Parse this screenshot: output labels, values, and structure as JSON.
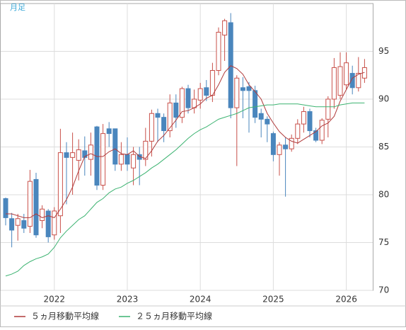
{
  "chart_data": {
    "type": "candlestick",
    "title": "月足",
    "categories": [
      null,
      null,
      null,
      null,
      null,
      null,
      null,
      null,
      "2022",
      null,
      null,
      null,
      null,
      null,
      null,
      null,
      null,
      null,
      null,
      null,
      "2023",
      null,
      null,
      null,
      null,
      null,
      null,
      null,
      null,
      null,
      null,
      null,
      "2024",
      null,
      null,
      null,
      null,
      null,
      null,
      null,
      null,
      null,
      null,
      null,
      "2025",
      null,
      null,
      null,
      null,
      null,
      null,
      null,
      null,
      null,
      null,
      null,
      "2026",
      null,
      null,
      null
    ],
    "open": [
      79.6,
      77.5,
      76.8,
      77.3,
      76.7,
      81.6,
      77.3,
      78.3,
      75.8,
      77.8,
      84.4,
      83.9,
      83.6,
      84.6,
      83.7,
      87.1,
      81,
      86.9,
      86.9,
      83.2,
      84.2,
      82.8,
      84.2,
      83.7,
      85.6,
      88.5,
      88.1,
      86.7,
      89.6,
      88.1,
      91.1,
      89.1,
      89.9,
      91.2,
      90.4,
      93,
      96.7,
      98,
      89.1,
      91.2,
      91.3,
      90.9,
      88.5,
      87.9,
      86.4,
      84.2,
      85.2,
      84.8,
      85.9,
      87.4,
      88.7,
      86.7,
      85.7,
      87.9,
      90,
      90.4,
      91.5,
      92.7,
      91.2,
      92.2
    ],
    "high": [
      79.7,
      78.1,
      78,
      78,
      82.6,
      82.3,
      78.9,
      78.5,
      78.7,
      86.9,
      85.5,
      86.5,
      85.8,
      86.1,
      86.5,
      87.2,
      87.4,
      87.6,
      86.9,
      85.5,
      86,
      85,
      85,
      87,
      88.9,
      89,
      88.5,
      90.5,
      90.5,
      91.3,
      91.5,
      91,
      91.7,
      92,
      93.8,
      97.5,
      98.4,
      99,
      92.5,
      92.3,
      91.8,
      91.4,
      89,
      88.2,
      86.6,
      85.5,
      86,
      86.3,
      87.9,
      89.2,
      89,
      87,
      88,
      90.3,
      94.3,
      94.9,
      94.9,
      93.5,
      94.4,
      94.2
    ],
    "low": [
      76.8,
      74.5,
      75.2,
      76,
      76,
      75.5,
      76.5,
      75,
      75.3,
      76,
      79,
      80,
      81.5,
      82,
      82,
      80.5,
      80.5,
      85,
      82.5,
      82.5,
      82.5,
      81,
      81,
      83,
      84,
      85.5,
      85.5,
      86,
      87,
      87.5,
      88.5,
      88.5,
      89,
      89.8,
      89.7,
      92.5,
      94,
      88,
      83,
      88,
      86.5,
      87.5,
      86,
      85.5,
      83.5,
      82,
      79.8,
      84.5,
      85.3,
      86.5,
      86,
      85.5,
      85.3,
      86,
      89,
      90,
      91,
      90.5,
      90.8,
      91.7
    ],
    "close": [
      77.6,
      76.3,
      77.5,
      76.5,
      81.4,
      75.8,
      78.5,
      75.6,
      78.3,
      84.4,
      83.9,
      84.4,
      84.7,
      83.9,
      85.2,
      81,
      86.4,
      86.4,
      83.2,
      84.2,
      83.2,
      84.2,
      83.7,
      85.6,
      88.5,
      88.1,
      86.7,
      89.6,
      88.1,
      91.1,
      89.1,
      90,
      91.1,
      90.4,
      93,
      97,
      98.2,
      89.1,
      92.2,
      90.9,
      90.9,
      88.1,
      87.9,
      87.4,
      84.2,
      85.2,
      84.8,
      85.9,
      87.4,
      88.7,
      86.7,
      85.7,
      87.8,
      90,
      93.3,
      93.4,
      93.8,
      91.2,
      92.7,
      93.3
    ],
    "up_color": "#c8504a",
    "down_color": "#4a86bd",
    "series": [
      {
        "name": "５ヵ月移動平均線",
        "color": "#b03a3a",
        "values": [
          78,
          78,
          77.8,
          77.6,
          77.6,
          78,
          77.6,
          77.8,
          77.6,
          78.5,
          79.5,
          80.8,
          82.5,
          84,
          84.3,
          84,
          84,
          84.5,
          84.8,
          84.3,
          84.2,
          84.6,
          84,
          83.8,
          84.6,
          85.6,
          86.2,
          87,
          87.8,
          88.7,
          88.8,
          89.1,
          89.5,
          90.1,
          90.4,
          91.5,
          92.8,
          93.5,
          93.2,
          92.6,
          91.5,
          90.8,
          90,
          88.5,
          87.5,
          86.6,
          86,
          85.6,
          85.4,
          85.8,
          86.2,
          86.6,
          87.2,
          87.5,
          88.2,
          89.8,
          91,
          92.2,
          92.6,
          92.8
        ]
      },
      {
        "name": "２５ヵ月移動平均線",
        "color": "#3cb371",
        "values": [
          71.5,
          71.7,
          72,
          72.6,
          73,
          73.3,
          73.5,
          73.8,
          74.5,
          75.5,
          76.2,
          76.8,
          77.4,
          77.8,
          78.5,
          79.2,
          79.6,
          80.2,
          80.6,
          80.8,
          81.2,
          81.5,
          81.9,
          82.3,
          82.8,
          83.2,
          83.7,
          84.2,
          84.7,
          85.3,
          85.9,
          86.4,
          86.8,
          87.1,
          87.5,
          87.9,
          88.1,
          88.3,
          88.5,
          88.8,
          89.1,
          89.2,
          89.3,
          89.4,
          89.4,
          89.5,
          89.5,
          89.5,
          89.5,
          89.4,
          89.3,
          89.2,
          89.2,
          89.2,
          89.2,
          89.4,
          89.5,
          89.6,
          89.6,
          89.6
        ]
      }
    ],
    "ylim": [
      70,
      100
    ],
    "yticks": [
      70,
      75,
      80,
      85,
      90,
      95
    ],
    "grid": true
  }
}
